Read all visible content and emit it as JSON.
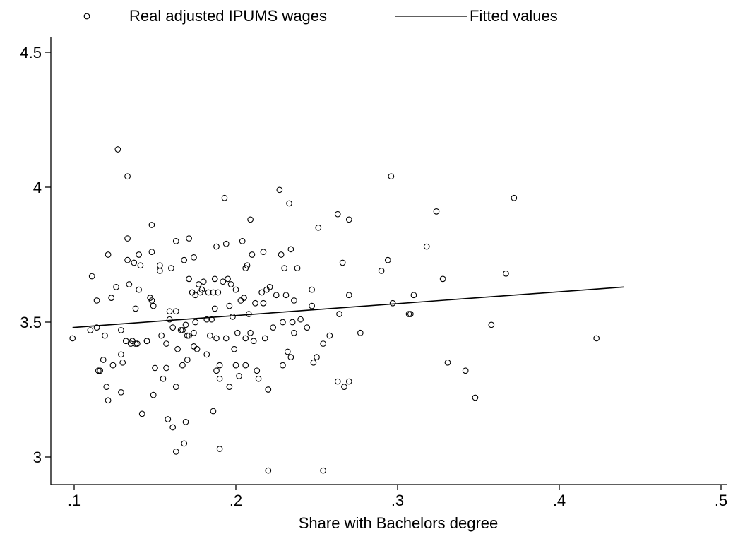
{
  "chart_data": {
    "type": "scatter",
    "xlabel": "Share with Bachelors degree",
    "ylabel": "",
    "xlim": [
      0.1,
      0.5
    ],
    "ylim": [
      2.95,
      4.55
    ],
    "x_ticks": [
      {
        "value": 0.1,
        "label": ".1"
      },
      {
        "value": 0.2,
        "label": ".2"
      },
      {
        "value": 0.3,
        "label": ".3"
      },
      {
        "value": 0.4,
        "label": ".4"
      },
      {
        "value": 0.5,
        "label": ".5"
      }
    ],
    "y_ticks": [
      {
        "value": 3,
        "label": "3"
      },
      {
        "value": 3.5,
        "label": "3.5"
      },
      {
        "value": 4,
        "label": "4"
      },
      {
        "value": 4.5,
        "label": "4.5"
      }
    ],
    "grid": false,
    "legend": {
      "placement": "top",
      "entries": [
        {
          "label": "Real adjusted IPUMS wages",
          "marker": "hollow-circle"
        },
        {
          "label": "Fitted values",
          "marker": "line"
        }
      ]
    },
    "series": [
      {
        "name": "Real adjusted IPUMS wages",
        "kind": "scatter",
        "points": [
          [
            0.099,
            3.44
          ],
          [
            0.11,
            3.47
          ],
          [
            0.111,
            3.67
          ],
          [
            0.114,
            3.48
          ],
          [
            0.114,
            3.58
          ],
          [
            0.115,
            3.32
          ],
          [
            0.116,
            3.32
          ],
          [
            0.118,
            3.36
          ],
          [
            0.119,
            3.45
          ],
          [
            0.12,
            3.26
          ],
          [
            0.121,
            3.21
          ],
          [
            0.121,
            3.75
          ],
          [
            0.123,
            3.59
          ],
          [
            0.124,
            3.34
          ],
          [
            0.126,
            3.63
          ],
          [
            0.127,
            4.14
          ],
          [
            0.129,
            3.47
          ],
          [
            0.129,
            3.38
          ],
          [
            0.129,
            3.24
          ],
          [
            0.13,
            3.35
          ],
          [
            0.132,
            3.43
          ],
          [
            0.133,
            3.81
          ],
          [
            0.133,
            3.73
          ],
          [
            0.133,
            4.04
          ],
          [
            0.134,
            3.64
          ],
          [
            0.135,
            3.42
          ],
          [
            0.136,
            3.43
          ],
          [
            0.137,
            3.72
          ],
          [
            0.138,
            3.55
          ],
          [
            0.138,
            3.42
          ],
          [
            0.139,
            3.42
          ],
          [
            0.14,
            3.62
          ],
          [
            0.14,
            3.75
          ],
          [
            0.141,
            3.71
          ],
          [
            0.142,
            3.16
          ],
          [
            0.145,
            3.43
          ],
          [
            0.145,
            3.43
          ],
          [
            0.147,
            3.59
          ],
          [
            0.148,
            3.58
          ],
          [
            0.148,
            3.76
          ],
          [
            0.148,
            3.86
          ],
          [
            0.149,
            3.23
          ],
          [
            0.149,
            3.56
          ],
          [
            0.15,
            3.33
          ],
          [
            0.153,
            3.69
          ],
          [
            0.153,
            3.71
          ],
          [
            0.154,
            3.45
          ],
          [
            0.155,
            3.29
          ],
          [
            0.157,
            3.33
          ],
          [
            0.157,
            3.42
          ],
          [
            0.158,
            3.14
          ],
          [
            0.159,
            3.51
          ],
          [
            0.159,
            3.54
          ],
          [
            0.16,
            3.7
          ],
          [
            0.161,
            3.11
          ],
          [
            0.161,
            3.48
          ],
          [
            0.163,
            3.8
          ],
          [
            0.163,
            3.54
          ],
          [
            0.163,
            3.26
          ],
          [
            0.163,
            3.02
          ],
          [
            0.164,
            3.4
          ],
          [
            0.166,
            3.47
          ],
          [
            0.167,
            3.34
          ],
          [
            0.167,
            3.47
          ],
          [
            0.168,
            3.05
          ],
          [
            0.168,
            3.73
          ],
          [
            0.169,
            3.13
          ],
          [
            0.169,
            3.49
          ],
          [
            0.17,
            3.45
          ],
          [
            0.17,
            3.36
          ],
          [
            0.171,
            3.81
          ],
          [
            0.171,
            3.45
          ],
          [
            0.171,
            3.66
          ],
          [
            0.173,
            3.61
          ],
          [
            0.174,
            3.74
          ],
          [
            0.174,
            3.46
          ],
          [
            0.174,
            3.41
          ],
          [
            0.175,
            3.6
          ],
          [
            0.175,
            3.5
          ],
          [
            0.176,
            3.4
          ],
          [
            0.177,
            3.64
          ],
          [
            0.178,
            3.61
          ],
          [
            0.179,
            3.62
          ],
          [
            0.18,
            3.65
          ],
          [
            0.182,
            3.38
          ],
          [
            0.182,
            3.51
          ],
          [
            0.183,
            3.61
          ],
          [
            0.184,
            3.45
          ],
          [
            0.185,
            3.51
          ],
          [
            0.186,
            3.17
          ],
          [
            0.186,
            3.61
          ],
          [
            0.187,
            3.66
          ],
          [
            0.187,
            3.55
          ],
          [
            0.188,
            3.78
          ],
          [
            0.188,
            3.32
          ],
          [
            0.188,
            3.44
          ],
          [
            0.189,
            3.61
          ],
          [
            0.19,
            3.03
          ],
          [
            0.19,
            3.29
          ],
          [
            0.19,
            3.34
          ],
          [
            0.192,
            3.65
          ],
          [
            0.193,
            3.96
          ],
          [
            0.194,
            3.79
          ],
          [
            0.194,
            3.44
          ],
          [
            0.195,
            3.66
          ],
          [
            0.196,
            3.26
          ],
          [
            0.196,
            3.56
          ],
          [
            0.197,
            3.64
          ],
          [
            0.198,
            3.52
          ],
          [
            0.199,
            3.4
          ],
          [
            0.2,
            3.34
          ],
          [
            0.2,
            3.62
          ],
          [
            0.201,
            3.46
          ],
          [
            0.202,
            3.3
          ],
          [
            0.203,
            3.58
          ],
          [
            0.204,
            3.8
          ],
          [
            0.205,
            3.59
          ],
          [
            0.206,
            3.34
          ],
          [
            0.206,
            3.7
          ],
          [
            0.206,
            3.44
          ],
          [
            0.207,
            3.71
          ],
          [
            0.208,
            3.53
          ],
          [
            0.209,
            3.88
          ],
          [
            0.209,
            3.46
          ],
          [
            0.21,
            3.75
          ],
          [
            0.211,
            3.43
          ],
          [
            0.212,
            3.57
          ],
          [
            0.213,
            3.32
          ],
          [
            0.214,
            3.29
          ],
          [
            0.216,
            3.61
          ],
          [
            0.217,
            3.76
          ],
          [
            0.217,
            3.57
          ],
          [
            0.218,
            3.44
          ],
          [
            0.219,
            3.62
          ],
          [
            0.22,
            3.25
          ],
          [
            0.22,
            2.95
          ],
          [
            0.221,
            3.63
          ],
          [
            0.223,
            3.48
          ],
          [
            0.225,
            3.6
          ],
          [
            0.227,
            3.99
          ],
          [
            0.228,
            3.75
          ],
          [
            0.229,
            3.34
          ],
          [
            0.229,
            3.5
          ],
          [
            0.23,
            3.7
          ],
          [
            0.231,
            3.6
          ],
          [
            0.232,
            3.39
          ],
          [
            0.233,
            3.94
          ],
          [
            0.234,
            3.77
          ],
          [
            0.234,
            3.37
          ],
          [
            0.235,
            3.5
          ],
          [
            0.236,
            3.46
          ],
          [
            0.236,
            3.58
          ],
          [
            0.238,
            3.7
          ],
          [
            0.24,
            3.51
          ],
          [
            0.244,
            3.48
          ],
          [
            0.247,
            3.56
          ],
          [
            0.247,
            3.62
          ],
          [
            0.248,
            3.35
          ],
          [
            0.25,
            3.37
          ],
          [
            0.251,
            3.85
          ],
          [
            0.254,
            3.42
          ],
          [
            0.254,
            2.95
          ],
          [
            0.258,
            3.45
          ],
          [
            0.263,
            3.9
          ],
          [
            0.263,
            3.28
          ],
          [
            0.264,
            3.53
          ],
          [
            0.266,
            3.72
          ],
          [
            0.267,
            3.26
          ],
          [
            0.27,
            3.6
          ],
          [
            0.27,
            3.88
          ],
          [
            0.27,
            3.28
          ],
          [
            0.277,
            3.46
          ],
          [
            0.29,
            3.69
          ],
          [
            0.294,
            3.73
          ],
          [
            0.296,
            4.04
          ],
          [
            0.297,
            3.57
          ],
          [
            0.307,
            3.53
          ],
          [
            0.308,
            3.53
          ],
          [
            0.31,
            3.6
          ],
          [
            0.318,
            3.78
          ],
          [
            0.324,
            3.91
          ],
          [
            0.328,
            3.66
          ],
          [
            0.331,
            3.35
          ],
          [
            0.342,
            3.32
          ],
          [
            0.348,
            3.22
          ],
          [
            0.358,
            3.49
          ],
          [
            0.367,
            3.68
          ],
          [
            0.372,
            3.96
          ],
          [
            0.423,
            3.44
          ]
        ]
      },
      {
        "name": "Fitted values",
        "kind": "line",
        "points": [
          [
            0.099,
            3.48
          ],
          [
            0.44,
            3.63
          ]
        ]
      }
    ]
  }
}
